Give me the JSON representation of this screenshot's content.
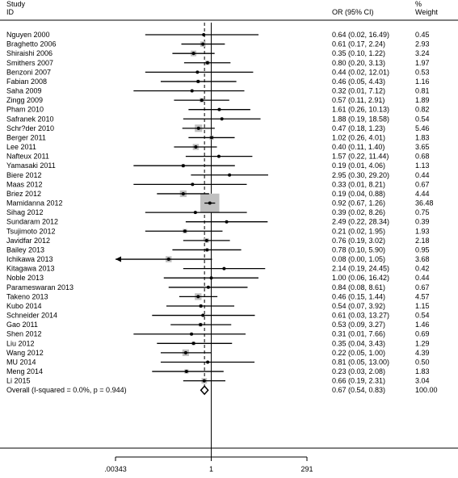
{
  "chart_data": {
    "type": "forest",
    "header": {
      "study_line1": "Study",
      "study_line2": "ID",
      "or_label": "OR (95% CI)",
      "weight_line1": "%",
      "weight_line2": "Weight"
    },
    "x_scale": "log",
    "x_ticks": [
      {
        "value": 0.00343,
        "label": ".00343"
      },
      {
        "value": 1,
        "label": "1"
      },
      {
        "value": 291,
        "label": "291"
      }
    ],
    "reference_line": 1,
    "studies": [
      {
        "id": "Nguyen 2000",
        "or": 0.64,
        "lo": 0.02,
        "hi": 16.49,
        "ci_text": "0.64 (0.02, 16.49)",
        "weight": 0.45,
        "weight_text": "0.45"
      },
      {
        "id": "Braghetto 2006",
        "or": 0.61,
        "lo": 0.17,
        "hi": 2.24,
        "ci_text": "0.61 (0.17, 2.24)",
        "weight": 2.93,
        "weight_text": "2.93"
      },
      {
        "id": "Shiraishi 2006",
        "or": 0.35,
        "lo": 0.1,
        "hi": 1.22,
        "ci_text": "0.35 (0.10, 1.22)",
        "weight": 3.24,
        "weight_text": "3.24"
      },
      {
        "id": "Smithers 2007",
        "or": 0.8,
        "lo": 0.2,
        "hi": 3.13,
        "ci_text": "0.80 (0.20, 3.13)",
        "weight": 1.97,
        "weight_text": "1.97"
      },
      {
        "id": "Benzoni 2007",
        "or": 0.44,
        "lo": 0.02,
        "hi": 12.01,
        "ci_text": "0.44 (0.02, 12.01)",
        "weight": 0.53,
        "weight_text": "0.53"
      },
      {
        "id": "Fabian 2008",
        "or": 0.46,
        "lo": 0.05,
        "hi": 4.43,
        "ci_text": "0.46 (0.05, 4.43)",
        "weight": 1.16,
        "weight_text": "1.16"
      },
      {
        "id": "Saha 2009",
        "or": 0.32,
        "lo": 0.01,
        "hi": 7.12,
        "ci_text": "0.32 (0.01, 7.12)",
        "weight": 0.81,
        "weight_text": "0.81"
      },
      {
        "id": "Zingg 2009",
        "or": 0.57,
        "lo": 0.11,
        "hi": 2.91,
        "ci_text": "0.57 (0.11, 2.91)",
        "weight": 1.89,
        "weight_text": "1.89"
      },
      {
        "id": "Pham 2010",
        "or": 1.61,
        "lo": 0.26,
        "hi": 10.13,
        "ci_text": "1.61 (0.26, 10.13)",
        "weight": 0.82,
        "weight_text": "0.82"
      },
      {
        "id": "Safranek 2010",
        "or": 1.88,
        "lo": 0.19,
        "hi": 18.58,
        "ci_text": "1.88 (0.19, 18.58)",
        "weight": 0.54,
        "weight_text": "0.54"
      },
      {
        "id": "Schr?der 2010",
        "or": 0.47,
        "lo": 0.18,
        "hi": 1.23,
        "ci_text": "0.47 (0.18, 1.23)",
        "weight": 5.46,
        "weight_text": "5.46"
      },
      {
        "id": "Berger 2011",
        "or": 1.02,
        "lo": 0.26,
        "hi": 4.01,
        "ci_text": "1.02 (0.26, 4.01)",
        "weight": 1.83,
        "weight_text": "1.83"
      },
      {
        "id": "Lee 2011",
        "or": 0.4,
        "lo": 0.11,
        "hi": 1.4,
        "ci_text": "0.40 (0.11, 1.40)",
        "weight": 3.65,
        "weight_text": "3.65"
      },
      {
        "id": "Nafteux 2011",
        "or": 1.57,
        "lo": 0.22,
        "hi": 11.44,
        "ci_text": "1.57 (0.22, 11.44)",
        "weight": 0.68,
        "weight_text": "0.68"
      },
      {
        "id": "Yamasaki 2011",
        "or": 0.19,
        "lo": 0.01,
        "hi": 4.06,
        "ci_text": "0.19 (0.01, 4.06)",
        "weight": 1.13,
        "weight_text": "1.13"
      },
      {
        "id": "Biere 2012",
        "or": 2.95,
        "lo": 0.3,
        "hi": 29.2,
        "ci_text": "2.95 (0.30, 29.20)",
        "weight": 0.44,
        "weight_text": "0.44"
      },
      {
        "id": "Maas 2012",
        "or": 0.33,
        "lo": 0.01,
        "hi": 8.21,
        "ci_text": "0.33 (0.01, 8.21)",
        "weight": 0.67,
        "weight_text": "0.67"
      },
      {
        "id": "Briez 2012",
        "or": 0.19,
        "lo": 0.04,
        "hi": 0.88,
        "ci_text": "0.19 (0.04, 0.88)",
        "weight": 4.44,
        "weight_text": "4.44"
      },
      {
        "id": "Mamidanna 2012",
        "or": 0.92,
        "lo": 0.67,
        "hi": 1.26,
        "ci_text": "0.92 (0.67, 1.26)",
        "weight": 36.48,
        "weight_text": "36.48"
      },
      {
        "id": "Sihag 2012",
        "or": 0.39,
        "lo": 0.02,
        "hi": 8.26,
        "ci_text": "0.39 (0.02, 8.26)",
        "weight": 0.75,
        "weight_text": "0.75"
      },
      {
        "id": "Sundaram 2012",
        "or": 2.49,
        "lo": 0.22,
        "hi": 28.34,
        "ci_text": "2.49 (0.22, 28.34)",
        "weight": 0.39,
        "weight_text": "0.39"
      },
      {
        "id": "Tsujimoto 2012",
        "or": 0.21,
        "lo": 0.02,
        "hi": 1.95,
        "ci_text": "0.21 (0.02, 1.95)",
        "weight": 1.93,
        "weight_text": "1.93"
      },
      {
        "id": "Javidfar 2012",
        "or": 0.76,
        "lo": 0.19,
        "hi": 3.02,
        "ci_text": "0.76 (0.19, 3.02)",
        "weight": 2.18,
        "weight_text": "2.18"
      },
      {
        "id": "Bailey 2013",
        "or": 0.78,
        "lo": 0.1,
        "hi": 5.9,
        "ci_text": "0.78 (0.10, 5.90)",
        "weight": 0.95,
        "weight_text": "0.95"
      },
      {
        "id": "Ichikawa 2013",
        "or": 0.08,
        "lo": 0.0,
        "hi": 1.05,
        "ci_text": "0.08 (0.00, 1.05)",
        "weight": 3.68,
        "weight_text": "3.68",
        "arrow_left": true
      },
      {
        "id": "Kitagawa 2013",
        "or": 2.14,
        "lo": 0.19,
        "hi": 24.45,
        "ci_text": "2.14 (0.19, 24.45)",
        "weight": 0.42,
        "weight_text": "0.42"
      },
      {
        "id": "Noble 2013",
        "or": 1.0,
        "lo": 0.06,
        "hi": 16.42,
        "ci_text": "1.00 (0.06, 16.42)",
        "weight": 0.44,
        "weight_text": "0.44"
      },
      {
        "id": "Parameswaran 2013",
        "or": 0.84,
        "lo": 0.08,
        "hi": 8.61,
        "ci_text": "0.84 (0.08, 8.61)",
        "weight": 0.67,
        "weight_text": "0.67"
      },
      {
        "id": "Takeno 2013",
        "or": 0.46,
        "lo": 0.15,
        "hi": 1.44,
        "ci_text": "0.46 (0.15, 1.44)",
        "weight": 4.57,
        "weight_text": "4.57"
      },
      {
        "id": "Kubo 2014",
        "or": 0.54,
        "lo": 0.07,
        "hi": 3.92,
        "ci_text": "0.54 (0.07, 3.92)",
        "weight": 1.15,
        "weight_text": "1.15"
      },
      {
        "id": "Schneider 2014",
        "or": 0.61,
        "lo": 0.03,
        "hi": 13.27,
        "ci_text": "0.61 (0.03, 13.27)",
        "weight": 0.54,
        "weight_text": "0.54"
      },
      {
        "id": "Gao 2011",
        "or": 0.53,
        "lo": 0.09,
        "hi": 3.27,
        "ci_text": "0.53 (0.09, 3.27)",
        "weight": 1.46,
        "weight_text": "1.46"
      },
      {
        "id": "Shen 2012",
        "or": 0.31,
        "lo": 0.01,
        "hi": 7.66,
        "ci_text": "0.31 (0.01, 7.66)",
        "weight": 0.69,
        "weight_text": "0.69"
      },
      {
        "id": "Liu 2012",
        "or": 0.35,
        "lo": 0.04,
        "hi": 3.43,
        "ci_text": "0.35 (0.04, 3.43)",
        "weight": 1.29,
        "weight_text": "1.29"
      },
      {
        "id": "Wang 2012",
        "or": 0.22,
        "lo": 0.05,
        "hi": 1.0,
        "ci_text": "0.22 (0.05, 1.00)",
        "weight": 4.39,
        "weight_text": "4.39"
      },
      {
        "id": "MU 2014",
        "or": 0.81,
        "lo": 0.05,
        "hi": 13.0,
        "ci_text": "0.81 (0.05, 13.00)",
        "weight": 0.5,
        "weight_text": "0.50"
      },
      {
        "id": "Meng 2014",
        "or": 0.23,
        "lo": 0.03,
        "hi": 2.08,
        "ci_text": "0.23 (0.03, 2.08)",
        "weight": 1.83,
        "weight_text": "1.83"
      },
      {
        "id": "Li 2015",
        "or": 0.66,
        "lo": 0.19,
        "hi": 2.31,
        "ci_text": "0.66 (0.19, 2.31)",
        "weight": 3.04,
        "weight_text": "3.04"
      }
    ],
    "overall": {
      "label": "Overall  (I-squared = 0.0%, p = 0.944)",
      "or": 0.67,
      "lo": 0.54,
      "hi": 0.83,
      "ci_text": "0.67 (0.54, 0.83)",
      "weight_text": "100.00"
    },
    "colors": {
      "box": "#c0c0c0",
      "line": "#000000",
      "dashed": "#000000",
      "diamond_fill": "#ffffff",
      "diamond_stroke": "#000000"
    }
  }
}
